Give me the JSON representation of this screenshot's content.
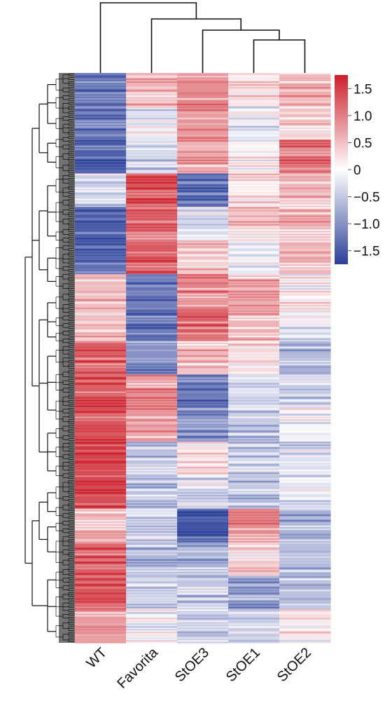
{
  "chart_data": {
    "type": "heatmap",
    "columns": [
      "WT",
      "Favorita",
      "StOE3",
      "StOE1",
      "StOE2"
    ],
    "column_dendrogram": "((WT),(Favorita,(StOE3,(StOE1,StOE2))))",
    "row_dendrogram": "clustered (many genes)",
    "color_scale": {
      "min": -1.75,
      "max": 1.75,
      "low_color": "#2b3f99",
      "mid_color": "#ffffff",
      "high_color": "#cc1f2a",
      "ticks": [
        1.5,
        1.0,
        0.5,
        0,
        -0.5,
        -1.0,
        -1.5
      ],
      "tick_labels": [
        "1.5",
        "1.0",
        "0.5",
        "0",
        "−0.5",
        "−1.0",
        "−1.5"
      ],
      "legend_position": "right"
    },
    "row_bands": [
      {
        "values": [
          -1.3,
          0.5,
          0.9,
          0.2,
          0.6
        ]
      },
      {
        "values": [
          -1.2,
          -0.2,
          0.8,
          -0.2,
          0.4
        ]
      },
      {
        "values": [
          -1.4,
          -0.4,
          0.6,
          0.1,
          1.0
        ]
      },
      {
        "values": [
          -0.4,
          1.3,
          -1.2,
          0.2,
          0.5
        ]
      },
      {
        "values": [
          -1.4,
          1.1,
          -0.3,
          0.4,
          0.6
        ]
      },
      {
        "values": [
          -1.3,
          1.3,
          0.4,
          -0.2,
          0.6
        ]
      },
      {
        "values": [
          0.5,
          -1.2,
          0.9,
          0.6,
          0.1
        ]
      },
      {
        "values": [
          0.4,
          -1.3,
          1.2,
          0.6,
          -0.2
        ]
      },
      {
        "values": [
          1.2,
          -1.0,
          0.5,
          0.3,
          -0.7
        ]
      },
      {
        "values": [
          1.3,
          0.8,
          -1.2,
          -0.3,
          -0.4
        ]
      },
      {
        "values": [
          1.3,
          0.7,
          -1.0,
          -0.5,
          -0.1
        ]
      },
      {
        "values": [
          1.5,
          -0.5,
          0.2,
          -0.4,
          -0.3
        ]
      },
      {
        "values": [
          1.4,
          -0.5,
          -0.3,
          -0.5,
          -0.2
        ]
      },
      {
        "values": [
          0.6,
          -0.3,
          -1.5,
          0.9,
          -0.7
        ]
      },
      {
        "values": [
          1.2,
          -0.6,
          -0.7,
          0.4,
          -0.6
        ]
      },
      {
        "values": [
          1.3,
          -0.3,
          -0.5,
          -0.8,
          -0.6
        ]
      },
      {
        "values": [
          0.8,
          -0.1,
          -0.5,
          -0.4,
          0.2
        ]
      }
    ]
  }
}
